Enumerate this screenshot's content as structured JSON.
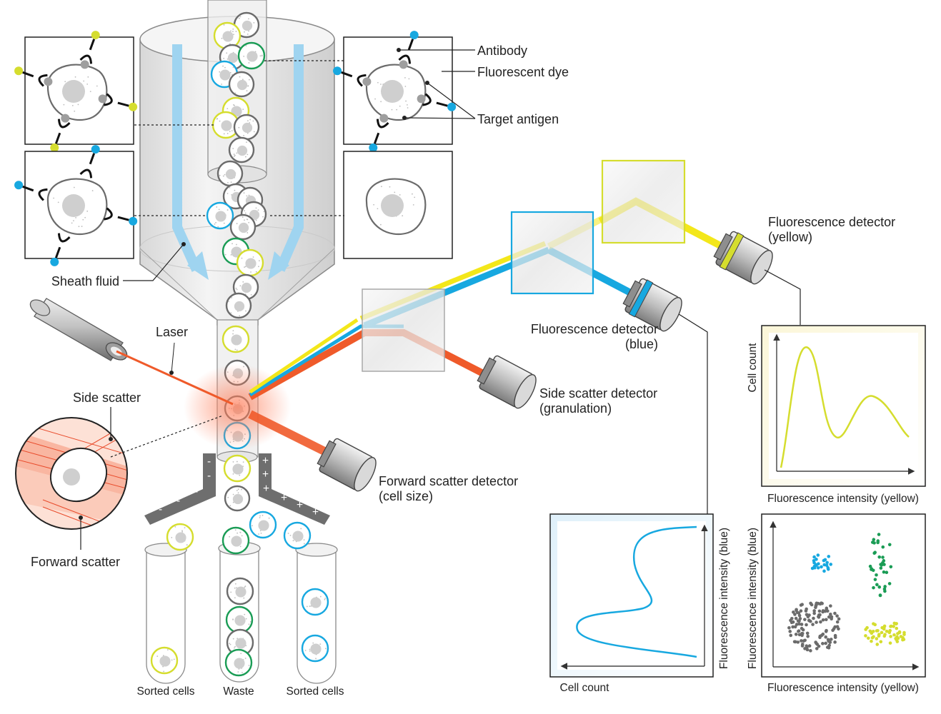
{
  "colors": {
    "laser": "#ef5a2a",
    "blue": "#17a8e0",
    "yellow": "#d5dd2e",
    "beam_yellow": "#f3e71a",
    "green": "#1a9c55",
    "gray": "#6b6b6b",
    "sheath_arrow": "#9fd4f0"
  },
  "labels": {
    "antibody": "Antibody",
    "fluorescent_dye": "Fluorescent dye",
    "target_antigen": "Target antigen",
    "sheath_fluid": "Sheath fluid",
    "laser": "Laser",
    "side_scatter": "Side scatter",
    "forward_scatter": "Forward scatter",
    "side_scatter_detector": "Side scatter detector",
    "side_scatter_detector_sub": "(granulation)",
    "forward_scatter_detector": "Forward scatter detector",
    "forward_scatter_detector_sub": "(cell size)",
    "fluor_blue": "Fluorescence detector",
    "fluor_blue_sub": "(blue)",
    "fluor_yellow": "Fluorescence detector",
    "fluor_yellow_sub": "(yellow)",
    "sorted_cells_left": "Sorted cells",
    "waste": "Waste",
    "sorted_cells_right": "Sorted cells"
  },
  "plots": {
    "yellow_hist": {
      "ylabel": "Cell count",
      "xlabel": "Fluorescence intensity (yellow)"
    },
    "blue_hist": {
      "ylabel": "Fluorescence intensity (blue)",
      "xlabel": "Cell count"
    },
    "scatter": {
      "ylabel": "Fluorescence intensity (blue)",
      "xlabel": "Fluorescence intensity (yellow)"
    }
  },
  "charge_signs": {
    "minus": "-",
    "plus": "+"
  }
}
